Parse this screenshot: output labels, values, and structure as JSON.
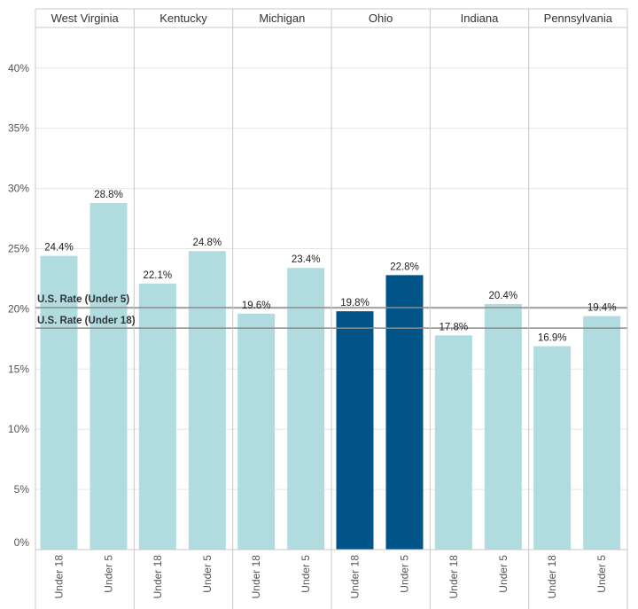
{
  "colors": {
    "highlight": "#005487",
    "default": "#b0dcdf",
    "grid": "#e6e6e6",
    "divider": "#c8c8c8",
    "refline": "#8c8c8c"
  },
  "chart_data": {
    "type": "bar",
    "title": "",
    "xlabel": "",
    "ylabel": "",
    "ylim": [
      0,
      43
    ],
    "yticks": [
      {
        "value": 0,
        "label": "0%"
      },
      {
        "value": 5,
        "label": "5%"
      },
      {
        "value": 10,
        "label": "10%"
      },
      {
        "value": 15,
        "label": "15%"
      },
      {
        "value": 20,
        "label": "20%"
      },
      {
        "value": 25,
        "label": "25%"
      },
      {
        "value": 30,
        "label": "30%"
      },
      {
        "value": 35,
        "label": "35%"
      },
      {
        "value": 40,
        "label": "40%"
      }
    ],
    "grid": true,
    "panels": [
      {
        "state": "West Virginia",
        "highlight": false,
        "bars": [
          {
            "category": "Under 18",
            "value": 24.4,
            "label": "24.4%"
          },
          {
            "category": "Under 5",
            "value": 28.8,
            "label": "28.8%"
          }
        ]
      },
      {
        "state": "Kentucky",
        "highlight": false,
        "bars": [
          {
            "category": "Under 18",
            "value": 22.1,
            "label": "22.1%"
          },
          {
            "category": "Under 5",
            "value": 24.8,
            "label": "24.8%"
          }
        ]
      },
      {
        "state": "Michigan",
        "highlight": false,
        "bars": [
          {
            "category": "Under 18",
            "value": 19.6,
            "label": "19.6%"
          },
          {
            "category": "Under 5",
            "value": 23.4,
            "label": "23.4%"
          }
        ]
      },
      {
        "state": "Ohio",
        "highlight": true,
        "bars": [
          {
            "category": "Under 18",
            "value": 19.8,
            "label": "19.8%"
          },
          {
            "category": "Under 5",
            "value": 22.8,
            "label": "22.8%"
          }
        ]
      },
      {
        "state": "Indiana",
        "highlight": false,
        "bars": [
          {
            "category": "Under 18",
            "value": 17.8,
            "label": "17.8%"
          },
          {
            "category": "Under 5",
            "value": 20.4,
            "label": "20.4%"
          }
        ]
      },
      {
        "state": "Pennsylvania",
        "highlight": false,
        "bars": [
          {
            "category": "Under 18",
            "value": 16.9,
            "label": "16.9%"
          },
          {
            "category": "Under 5",
            "value": 19.4,
            "label": "19.4%"
          }
        ]
      }
    ],
    "reference_lines": [
      {
        "label": "U.S. Rate (Under 5)",
        "value": 20.1
      },
      {
        "label": "U.S. Rate (Under 18)",
        "value": 18.4
      }
    ]
  }
}
